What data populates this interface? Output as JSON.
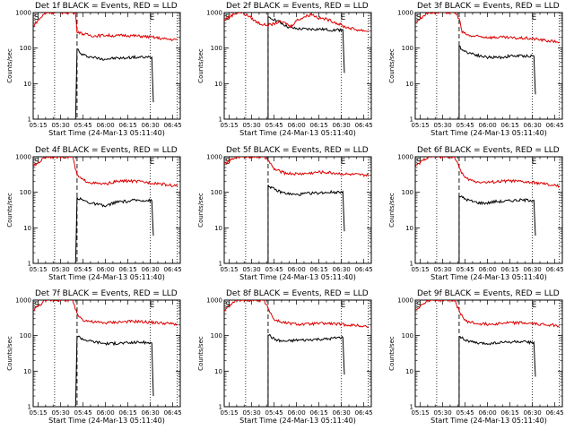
{
  "colors": {
    "events": "#000000",
    "lld": "#dd0000",
    "background": "#ffffff"
  },
  "chart_data": [
    {
      "type": "line",
      "title": "Det 1f BLACK = Events, RED = LLD",
      "xlabel": "Start Time (24-Mar-13 05:11:40)",
      "ylabel": "Counts/sec",
      "ylog": true,
      "ylim": [
        1,
        1000
      ],
      "yticks": [
        "1",
        "10",
        "100",
        "1000"
      ],
      "xticks": [
        "05:15",
        "05:30",
        "05:45",
        "06:00",
        "06:15",
        "06:30",
        "06:45"
      ],
      "markers": [
        "S",
        "E"
      ],
      "series": [
        {
          "name": "Events",
          "color": "#000000",
          "x": [
            "05:40",
            "05:41",
            "05:43",
            "05:47",
            "05:52",
            "05:57",
            "06:02",
            "06:07",
            "06:12",
            "06:17",
            "06:22",
            "06:27",
            "06:31",
            "06:32"
          ],
          "y": [
            1,
            100,
            70,
            60,
            55,
            50,
            50,
            52,
            52,
            55,
            55,
            55,
            55,
            3
          ]
        },
        {
          "name": "LLD",
          "color": "#dd0000",
          "x": [
            "05:11",
            "05:20",
            "05:30",
            "05:38",
            "05:40",
            "05:41",
            "05:45",
            "05:52",
            "06:00",
            "06:07",
            "06:12",
            "06:20",
            "06:27",
            "06:32",
            "06:40",
            "06:48"
          ],
          "y": [
            400,
            1000,
            1000,
            1000,
            900,
            300,
            250,
            220,
            230,
            220,
            230,
            220,
            210,
            200,
            180,
            170
          ]
        }
      ]
    },
    {
      "type": "line",
      "title": "Det 2f BLACK = Events, RED = LLD",
      "xlabel": "Start Time (24-Mar-13 05:11:40)",
      "ylabel": "Counts/sec",
      "ylog": true,
      "ylim": [
        1,
        1000
      ],
      "yticks": [
        "1",
        "10",
        "100",
        "1000"
      ],
      "xticks": [
        "05:15",
        "05:30",
        "05:45",
        "06:00",
        "06:15",
        "06:30",
        "06:45"
      ],
      "markers": [
        "S",
        "E"
      ],
      "series": [
        {
          "name": "Events",
          "color": "#000000",
          "x": [
            "05:41",
            "05:41",
            "05:45",
            "05:50",
            "05:55",
            "06:00",
            "06:05",
            "06:10",
            "06:15",
            "06:20",
            "06:25",
            "06:31",
            "06:32"
          ],
          "y": [
            1,
            700,
            650,
            500,
            380,
            350,
            340,
            340,
            340,
            330,
            320,
            330,
            20
          ]
        },
        {
          "name": "LLD",
          "color": "#dd0000",
          "x": [
            "05:11",
            "05:20",
            "05:23",
            "05:28",
            "05:33",
            "05:38",
            "05:43",
            "05:48",
            "05:53",
            "05:56",
            "06:00",
            "06:05",
            "06:10",
            "06:15",
            "06:20",
            "06:25",
            "06:32",
            "06:40",
            "06:48"
          ],
          "y": [
            600,
            1000,
            1000,
            800,
            550,
            450,
            450,
            550,
            500,
            400,
            600,
            750,
            900,
            700,
            650,
            550,
            400,
            330,
            300
          ]
        }
      ]
    },
    {
      "type": "line",
      "title": "Det 3f BLACK = Events, RED = LLD",
      "xlabel": "Start Time (24-Mar-13 05:11:40)",
      "ylabel": "Counts/sec",
      "ylog": true,
      "ylim": [
        1,
        1000
      ],
      "yticks": [
        "1",
        "10",
        "100",
        "1000"
      ],
      "xticks": [
        "05:15",
        "05:30",
        "05:45",
        "06:00",
        "06:15",
        "06:30",
        "06:45"
      ],
      "markers": [
        "S",
        "E"
      ],
      "series": [
        {
          "name": "Events",
          "color": "#000000",
          "x": [
            "05:41",
            "05:41",
            "05:45",
            "05:50",
            "05:55",
            "06:00",
            "06:05",
            "06:10",
            "06:15",
            "06:20",
            "06:25",
            "06:31",
            "06:32"
          ],
          "y": [
            1,
            110,
            80,
            70,
            60,
            55,
            55,
            55,
            60,
            60,
            60,
            60,
            5
          ]
        },
        {
          "name": "LLD",
          "color": "#dd0000",
          "x": [
            "05:11",
            "05:20",
            "05:30",
            "05:38",
            "05:41",
            "05:43",
            "05:48",
            "05:55",
            "06:02",
            "06:10",
            "06:18",
            "06:25",
            "06:32",
            "06:40",
            "06:48"
          ],
          "y": [
            500,
            1000,
            1000,
            1000,
            700,
            280,
            220,
            210,
            200,
            200,
            190,
            190,
            180,
            160,
            150
          ]
        }
      ]
    },
    {
      "type": "line",
      "title": "Det 4f BLACK = Events, RED = LLD",
      "xlabel": "Start Time (24-Mar-13 05:11:40)",
      "ylabel": "Counts/sec",
      "ylog": true,
      "ylim": [
        1,
        1000
      ],
      "yticks": [
        "1",
        "10",
        "100",
        "1000"
      ],
      "xticks": [
        "05:15",
        "05:30",
        "05:45",
        "06:00",
        "06:15",
        "06:30",
        "06:45"
      ],
      "markers": [
        "S",
        "E"
      ],
      "series": [
        {
          "name": "Events",
          "color": "#000000",
          "x": [
            "05:40",
            "05:41",
            "05:45",
            "05:50",
            "05:55",
            "06:00",
            "06:05",
            "06:10",
            "06:15",
            "06:20",
            "06:25",
            "06:31",
            "06:32"
          ],
          "y": [
            1,
            70,
            60,
            50,
            45,
            40,
            50,
            55,
            55,
            60,
            60,
            58,
            6
          ]
        },
        {
          "name": "LLD",
          "color": "#dd0000",
          "x": [
            "05:11",
            "05:20",
            "05:30",
            "05:38",
            "05:41",
            "05:45",
            "05:52",
            "06:00",
            "06:07",
            "06:15",
            "06:22",
            "06:28",
            "06:35",
            "06:42",
            "06:48"
          ],
          "y": [
            500,
            1000,
            1000,
            1000,
            300,
            220,
            180,
            170,
            200,
            210,
            200,
            190,
            180,
            160,
            150
          ]
        }
      ]
    },
    {
      "type": "line",
      "title": "Det 5f BLACK = Events, RED = LLD",
      "xlabel": "Start Time (24-Mar-13 05:11:40)",
      "ylabel": "Counts/sec",
      "ylog": true,
      "ylim": [
        1,
        1000
      ],
      "yticks": [
        "1",
        "10",
        "100",
        "1000"
      ],
      "xticks": [
        "05:15",
        "05:30",
        "05:45",
        "06:00",
        "06:15",
        "06:30",
        "06:45"
      ],
      "markers": [
        "S",
        "E"
      ],
      "series": [
        {
          "name": "Events",
          "color": "#000000",
          "x": [
            "05:41",
            "05:41",
            "05:45",
            "05:50",
            "05:55",
            "06:00",
            "06:05",
            "06:10",
            "06:15",
            "06:20",
            "06:25",
            "06:31",
            "06:32"
          ],
          "y": [
            1,
            160,
            120,
            100,
            90,
            85,
            90,
            95,
            95,
            100,
            100,
            105,
            8
          ]
        },
        {
          "name": "LLD",
          "color": "#dd0000",
          "x": [
            "05:11",
            "05:20",
            "05:30",
            "05:38",
            "05:41",
            "05:45",
            "05:52",
            "06:00",
            "06:07",
            "06:15",
            "06:22",
            "06:28",
            "06:35",
            "06:42",
            "06:48"
          ],
          "y": [
            600,
            1000,
            1000,
            1000,
            800,
            450,
            350,
            330,
            340,
            370,
            360,
            340,
            320,
            310,
            300
          ]
        }
      ]
    },
    {
      "type": "line",
      "title": "Det 6f BLACK = Events, RED = LLD",
      "xlabel": "Start Time (24-Mar-13 05:11:40)",
      "ylabel": "Counts/sec",
      "ylog": true,
      "ylim": [
        1,
        1000
      ],
      "yticks": [
        "1",
        "10",
        "100",
        "1000"
      ],
      "xticks": [
        "05:15",
        "05:30",
        "05:45",
        "06:00",
        "06:15",
        "06:30",
        "06:45"
      ],
      "markers": [
        "S",
        "E"
      ],
      "series": [
        {
          "name": "Events",
          "color": "#000000",
          "x": [
            "05:41",
            "05:41",
            "05:45",
            "05:50",
            "05:55",
            "06:00",
            "06:05",
            "06:10",
            "06:15",
            "06:20",
            "06:25",
            "06:31",
            "06:32"
          ],
          "y": [
            1,
            80,
            65,
            55,
            50,
            50,
            55,
            55,
            58,
            60,
            60,
            60,
            6
          ]
        },
        {
          "name": "LLD",
          "color": "#dd0000",
          "x": [
            "05:11",
            "05:20",
            "05:30",
            "05:38",
            "05:41",
            "05:45",
            "05:52",
            "06:00",
            "06:07",
            "06:15",
            "06:22",
            "06:28",
            "06:35",
            "06:42",
            "06:48"
          ],
          "y": [
            500,
            1000,
            1000,
            1000,
            500,
            250,
            200,
            190,
            200,
            210,
            200,
            190,
            180,
            160,
            150
          ]
        }
      ]
    },
    {
      "type": "line",
      "title": "Det 7f BLACK = Events, RED = LLD",
      "xlabel": "Start Time (24-Mar-13 05:11:40)",
      "ylabel": "Counts/sec",
      "ylog": true,
      "ylim": [
        1,
        1000
      ],
      "yticks": [
        "1",
        "10",
        "100",
        "1000"
      ],
      "xticks": [
        "05:15",
        "05:30",
        "05:45",
        "06:00",
        "06:15",
        "06:30",
        "06:45"
      ],
      "markers": [
        "S",
        "E"
      ],
      "series": [
        {
          "name": "Events",
          "color": "#000000",
          "x": [
            "05:40",
            "05:41",
            "05:45",
            "05:50",
            "05:55",
            "06:00",
            "06:05",
            "06:10",
            "06:15",
            "06:20",
            "06:25",
            "06:31",
            "06:32"
          ],
          "y": [
            1,
            100,
            80,
            70,
            65,
            60,
            60,
            62,
            62,
            65,
            65,
            62,
            2
          ]
        },
        {
          "name": "LLD",
          "color": "#dd0000",
          "x": [
            "05:11",
            "05:20",
            "05:30",
            "05:38",
            "05:41",
            "05:45",
            "05:52",
            "06:00",
            "06:07",
            "06:15",
            "06:22",
            "06:28",
            "06:35",
            "06:42",
            "06:48"
          ],
          "y": [
            500,
            1000,
            1000,
            1000,
            400,
            280,
            240,
            230,
            240,
            250,
            250,
            240,
            230,
            220,
            210
          ]
        }
      ]
    },
    {
      "type": "line",
      "title": "Det 8f BLACK = Events, RED = LLD",
      "xlabel": "Start Time (24-Mar-13 05:11:40)",
      "ylabel": "Counts/sec",
      "ylog": true,
      "ylim": [
        1,
        1000
      ],
      "yticks": [
        "1",
        "10",
        "100",
        "1000"
      ],
      "xticks": [
        "05:15",
        "05:30",
        "05:45",
        "06:00",
        "06:15",
        "06:30",
        "06:45"
      ],
      "markers": [
        "S",
        "E"
      ],
      "series": [
        {
          "name": "Events",
          "color": "#000000",
          "x": [
            "05:41",
            "05:41",
            "05:45",
            "05:50",
            "05:55",
            "06:00",
            "06:05",
            "06:10",
            "06:15",
            "06:20",
            "06:25",
            "06:31",
            "06:32"
          ],
          "y": [
            1,
            110,
            80,
            70,
            70,
            75,
            75,
            78,
            80,
            80,
            85,
            90,
            8
          ]
        },
        {
          "name": "LLD",
          "color": "#dd0000",
          "x": [
            "05:11",
            "05:20",
            "05:30",
            "05:38",
            "05:41",
            "05:45",
            "05:52",
            "06:00",
            "06:07",
            "06:15",
            "06:22",
            "06:28",
            "06:35",
            "06:42",
            "06:48"
          ],
          "y": [
            500,
            1000,
            1000,
            1000,
            600,
            280,
            230,
            210,
            210,
            220,
            220,
            210,
            200,
            190,
            180
          ]
        }
      ]
    },
    {
      "type": "line",
      "title": "Det 9f BLACK = Events, RED = LLD",
      "xlabel": "Start Time (24-Mar-13 05:11:40)",
      "ylabel": "Counts/sec",
      "ylog": true,
      "ylim": [
        1,
        1000
      ],
      "yticks": [
        "1",
        "10",
        "100",
        "1000"
      ],
      "xticks": [
        "05:15",
        "05:30",
        "05:45",
        "06:00",
        "06:15",
        "06:30",
        "06:45"
      ],
      "markers": [
        "S",
        "E"
      ],
      "series": [
        {
          "name": "Events",
          "color": "#000000",
          "x": [
            "05:41",
            "05:41",
            "05:45",
            "05:50",
            "05:55",
            "06:00",
            "06:05",
            "06:10",
            "06:15",
            "06:20",
            "06:25",
            "06:31",
            "06:32"
          ],
          "y": [
            1,
            100,
            75,
            65,
            60,
            60,
            62,
            65,
            65,
            68,
            65,
            65,
            7
          ]
        },
        {
          "name": "LLD",
          "color": "#dd0000",
          "x": [
            "05:11",
            "05:20",
            "05:30",
            "05:38",
            "05:41",
            "05:45",
            "05:52",
            "06:00",
            "06:07",
            "06:15",
            "06:22",
            "06:28",
            "06:35",
            "06:42",
            "06:48"
          ],
          "y": [
            500,
            1000,
            1000,
            1000,
            500,
            260,
            220,
            210,
            220,
            230,
            230,
            220,
            210,
            200,
            190
          ]
        }
      ]
    }
  ]
}
